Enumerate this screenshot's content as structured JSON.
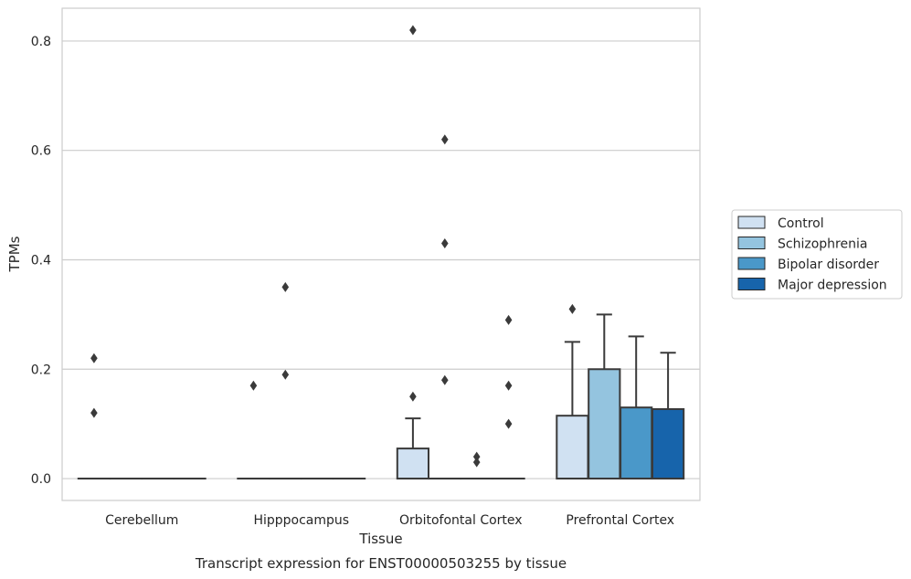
{
  "chart_data": {
    "type": "box",
    "ylabel": "TPMs",
    "xlabel": "Tissue",
    "caption": "Transcript expression for ENST00000503255 by tissue",
    "ylim": [
      -0.04,
      0.86
    ],
    "yticks": [
      "0.0",
      "0.2",
      "0.4",
      "0.6",
      "0.8"
    ],
    "grid": true,
    "legend_position": "right",
    "categories": [
      "Cerebellum",
      "Hipppocampus",
      "Orbitofontal Cortex",
      "Prefrontal Cortex"
    ],
    "series": [
      {
        "name": "Control",
        "color": "#d0e1f2",
        "boxes": [
          {
            "q1": 0,
            "median": 0,
            "q3": 0,
            "whisker_low": 0,
            "whisker_high": 0,
            "outliers": [
              0.12,
              0.22
            ]
          },
          {
            "q1": 0,
            "median": 0,
            "q3": 0,
            "whisker_low": 0,
            "whisker_high": 0,
            "outliers": [
              0.17
            ]
          },
          {
            "q1": 0,
            "median": 0,
            "q3": 0.055,
            "whisker_low": 0,
            "whisker_high": 0.11,
            "outliers": [
              0.15,
              0.82
            ]
          },
          {
            "q1": 0,
            "median": 0,
            "q3": 0.115,
            "whisker_low": 0,
            "whisker_high": 0.25,
            "outliers": [
              0.31
            ]
          }
        ]
      },
      {
        "name": "Schizophrenia",
        "color": "#94c4df",
        "boxes": [
          {
            "q1": 0,
            "median": 0,
            "q3": 0,
            "whisker_low": 0,
            "whisker_high": 0,
            "outliers": []
          },
          {
            "q1": 0,
            "median": 0,
            "q3": 0,
            "whisker_low": 0,
            "whisker_high": 0,
            "outliers": [
              0.19,
              0.35
            ]
          },
          {
            "q1": 0,
            "median": 0,
            "q3": 0,
            "whisker_low": 0,
            "whisker_high": 0,
            "outliers": [
              0.18,
              0.43,
              0.62
            ]
          },
          {
            "q1": 0,
            "median": 0,
            "q3": 0.2,
            "whisker_low": 0,
            "whisker_high": 0.3,
            "outliers": []
          }
        ]
      },
      {
        "name": "Bipolar disorder",
        "color": "#4a98c9",
        "boxes": [
          {
            "q1": 0,
            "median": 0,
            "q3": 0,
            "whisker_low": 0,
            "whisker_high": 0,
            "outliers": []
          },
          {
            "q1": 0,
            "median": 0,
            "q3": 0,
            "whisker_low": 0,
            "whisker_high": 0,
            "outliers": []
          },
          {
            "q1": 0,
            "median": 0,
            "q3": 0,
            "whisker_low": 0,
            "whisker_high": 0,
            "outliers": [
              0.03,
              0.04
            ]
          },
          {
            "q1": 0,
            "median": 0,
            "q3": 0.13,
            "whisker_low": 0,
            "whisker_high": 0.26,
            "outliers": []
          }
        ]
      },
      {
        "name": "Major depression",
        "color": "#1764ab",
        "boxes": [
          {
            "q1": 0,
            "median": 0,
            "q3": 0,
            "whisker_low": 0,
            "whisker_high": 0,
            "outliers": []
          },
          {
            "q1": 0,
            "median": 0,
            "q3": 0,
            "whisker_low": 0,
            "whisker_high": 0,
            "outliers": []
          },
          {
            "q1": 0,
            "median": 0,
            "q3": 0,
            "whisker_low": 0,
            "whisker_high": 0,
            "outliers": [
              0.1,
              0.17,
              0.29
            ]
          },
          {
            "q1": 0,
            "median": 0,
            "q3": 0.127,
            "whisker_low": 0,
            "whisker_high": 0.23,
            "outliers": []
          }
        ]
      }
    ]
  }
}
